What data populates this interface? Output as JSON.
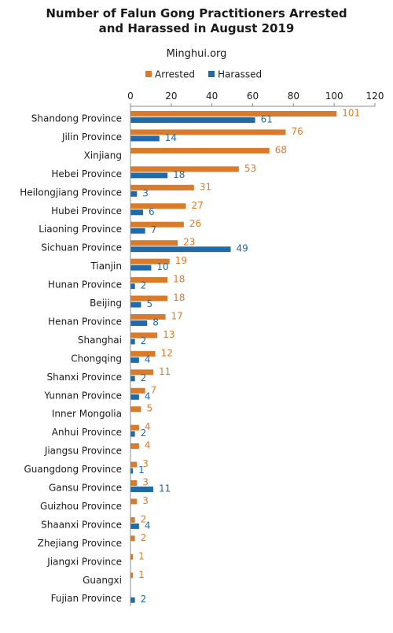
{
  "chart_data": {
    "type": "bar",
    "orientation": "horizontal",
    "title_line1": "Number of Falun Gong Practitioners Arrested",
    "title_line2": "and Harassed in August 2019",
    "source": "Minghui.org",
    "x_axis_position": "top",
    "xlim": [
      0,
      120
    ],
    "x_ticks": [
      0,
      20,
      40,
      60,
      80,
      100,
      120
    ],
    "grid": false,
    "legend_placement": "top",
    "categories": [
      "Shandong Province",
      "Jilin Province",
      "Xinjiang",
      "Hebei Province",
      "Heilongjiang Province",
      "Hubei Province",
      "Liaoning Province",
      "Sichuan Province",
      "Tianjin",
      "Hunan Province",
      "Beijing",
      "Henan Province",
      "Shanghai",
      "Chongqing",
      "Shanxi Province",
      "Yunnan Province",
      "Inner Mongolia",
      "Anhui Province",
      "Jiangsu Province",
      "Guangdong Province",
      "Gansu Province",
      "Guizhou Province",
      "Shaanxi Province",
      "Zhejiang Province",
      "Jiangxi Province",
      "Guangxi",
      "Fujian Province"
    ],
    "series": [
      {
        "name": "Arrested",
        "color": "#d97b29",
        "values": [
          101,
          76,
          68,
          53,
          31,
          27,
          26,
          23,
          19,
          18,
          18,
          17,
          13,
          12,
          11,
          7,
          5,
          4,
          4,
          3,
          3,
          3,
          2,
          2,
          1,
          1,
          null
        ]
      },
      {
        "name": "Harassed",
        "color": "#1f6aa8",
        "values": [
          61,
          14,
          null,
          18,
          3,
          6,
          7,
          49,
          10,
          2,
          5,
          8,
          2,
          4,
          2,
          4,
          null,
          2,
          null,
          1,
          11,
          null,
          4,
          null,
          null,
          null,
          2
        ]
      }
    ]
  }
}
